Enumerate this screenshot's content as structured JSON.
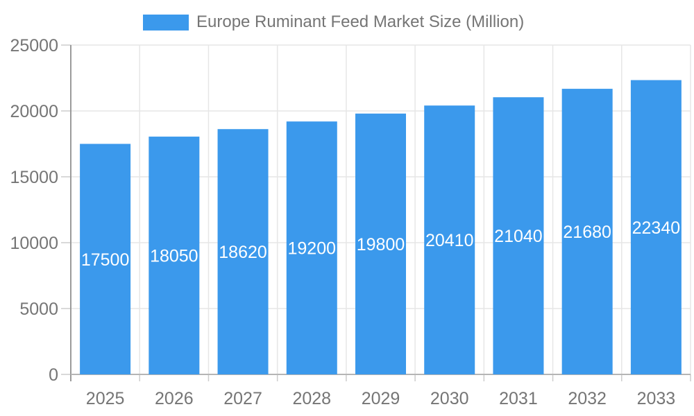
{
  "legend": {
    "label": "Europe Ruminant Feed Market Size (Million)"
  },
  "colors": {
    "bar": "#3B99EC",
    "grid": "#E6E6E6",
    "axis_y_line": "#9A9A9A",
    "axis_x_line": "#B5B5B5",
    "tick_mark": "#CCCCCC",
    "tick_label": "#757575",
    "value_label": "#FFFFFF",
    "legend_text": "#757575",
    "background": "#FFFFFF"
  },
  "chart_data": {
    "type": "bar",
    "title": "Europe Ruminant Feed Market Size (Million)",
    "series_name": "Europe Ruminant Feed Market Size (Million)",
    "categories": [
      "2025",
      "2026",
      "2027",
      "2028",
      "2029",
      "2030",
      "2031",
      "2032",
      "2033"
    ],
    "values": [
      17500,
      18050,
      18620,
      19200,
      19800,
      20410,
      21040,
      21680,
      22340
    ],
    "xlabel": "",
    "ylabel": "",
    "ylim": [
      0,
      25000
    ],
    "yticks": [
      0,
      5000,
      10000,
      15000,
      20000,
      25000
    ],
    "grid": true,
    "legend_position": "top",
    "value_label_style": "inside-center-white"
  }
}
